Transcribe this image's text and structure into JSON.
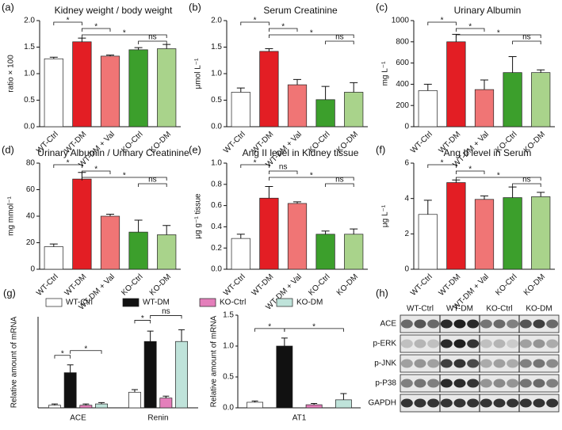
{
  "chart_data": [
    {
      "type": "bar",
      "panel_label": "(a)",
      "title": "Kidney weight / body weight",
      "ylabel": "ratio × 100",
      "categories": [
        "WT-Ctrl",
        "WT-DM",
        "WT-DM + Val",
        "KO-Ctrl",
        "KO-DM"
      ],
      "colors": [
        "#ffffff",
        "#e31e24",
        "#f07575",
        "#3c9f2c",
        "#a9d38b"
      ],
      "values": [
        1.28,
        1.6,
        1.33,
        1.45,
        1.47
      ],
      "errors": [
        0.03,
        0.07,
        0.02,
        0.04,
        0.08
      ],
      "ylim": [
        0,
        2
      ],
      "yticks": [
        {
          "value": 0,
          "label": "0.0"
        },
        0.5,
        {
          "value": 1,
          "label": "1.0"
        },
        1.5,
        {
          "value": 2,
          "label": "2.0"
        }
      ],
      "annotations": [
        {
          "label": "*",
          "between": [
            0,
            1
          ]
        },
        {
          "label": "*",
          "between": [
            1,
            2
          ]
        },
        {
          "label": "*",
          "between": [
            1,
            4
          ]
        },
        {
          "label": "ns",
          "between": [
            3,
            4
          ]
        }
      ]
    },
    {
      "type": "bar",
      "panel_label": "(b)",
      "title": "Serum Creatinine",
      "ylabel": "μmol L⁻¹",
      "categories": [
        "WT-Ctrl",
        "WT-DM",
        "WT-DM + Val",
        "KO-Ctrl",
        "KO-DM"
      ],
      "colors": [
        "#ffffff",
        "#e31e24",
        "#f07575",
        "#3c9f2c",
        "#a9d38b"
      ],
      "values": [
        0.65,
        1.42,
        0.79,
        0.51,
        0.65
      ],
      "errors": [
        0.08,
        0.05,
        0.1,
        0.25,
        0.18
      ],
      "ylim": [
        0,
        2
      ],
      "yticks": [
        {
          "value": 0,
          "label": "0.0"
        },
        0.5,
        {
          "value": 1,
          "label": "1.0"
        },
        1.5,
        {
          "value": 2,
          "label": "2.0"
        }
      ],
      "annotations": [
        {
          "label": "*",
          "between": [
            0,
            1
          ]
        },
        {
          "label": "*",
          "between": [
            1,
            2
          ]
        },
        {
          "label": "*",
          "between": [
            1,
            4
          ]
        },
        {
          "label": "ns",
          "between": [
            3,
            4
          ]
        }
      ]
    },
    {
      "type": "bar",
      "panel_label": "(c)",
      "title": "Urinary Albumin",
      "ylabel": "mg L⁻¹",
      "categories": [
        "WT-Ctrl",
        "WT-DM",
        "WT-DM + Val",
        "KO-Ctrl",
        "KO-DM"
      ],
      "colors": [
        "#ffffff",
        "#e31e24",
        "#f07575",
        "#3c9f2c",
        "#a9d38b"
      ],
      "values": [
        340,
        800,
        350,
        510,
        510
      ],
      "errors": [
        60,
        70,
        90,
        150,
        25
      ],
      "ylim": [
        0,
        1000
      ],
      "yticks": [
        0,
        200,
        400,
        600,
        800,
        1000
      ],
      "annotations": [
        {
          "label": "*",
          "between": [
            0,
            1
          ]
        },
        {
          "label": "*",
          "between": [
            1,
            2
          ]
        },
        {
          "label": "*",
          "between": [
            1,
            4
          ]
        },
        {
          "label": "ns",
          "between": [
            3,
            4
          ]
        }
      ]
    },
    {
      "type": "bar",
      "panel_label": "(d)",
      "title": "Urinary Albumin / Urinary Creatinine",
      "ylabel": "mg mmol⁻¹",
      "categories": [
        "WT-Ctrl",
        "WT-DM",
        "WT-DM + Val",
        "KO-Ctrl",
        "KO-DM"
      ],
      "colors": [
        "#ffffff",
        "#e31e24",
        "#f07575",
        "#3c9f2c",
        "#a9d38b"
      ],
      "values": [
        17,
        68,
        40,
        28,
        26
      ],
      "errors": [
        2,
        5,
        1.5,
        9,
        7
      ],
      "ylim": [
        0,
        80
      ],
      "yticks": [
        0,
        20,
        40,
        60,
        80
      ],
      "annotations": [
        {
          "label": "*",
          "between": [
            0,
            1
          ]
        },
        {
          "label": "*",
          "between": [
            1,
            2
          ]
        },
        {
          "label": "*",
          "between": [
            1,
            4
          ]
        },
        {
          "label": "ns",
          "between": [
            3,
            4
          ]
        }
      ]
    },
    {
      "type": "bar",
      "panel_label": "(e)",
      "title": "Ang II level in Kidney tissue",
      "ylabel": "μg g⁻¹ tissue",
      "categories": [
        "WT-Ctrl",
        "WT-DM",
        "WT-DM + Val",
        "KO-Ctrl",
        "KO-DM"
      ],
      "colors": [
        "#ffffff",
        "#e31e24",
        "#f07575",
        "#3c9f2c",
        "#a9d38b"
      ],
      "values": [
        0.29,
        0.67,
        0.62,
        0.33,
        0.33
      ],
      "errors": [
        0.04,
        0.11,
        0.015,
        0.03,
        0.05
      ],
      "ylim": [
        0,
        1
      ],
      "yticks": [
        {
          "value": 0,
          "label": "0.0"
        },
        0.2,
        0.4,
        0.6,
        0.8,
        {
          "value": 1,
          "label": "1.0"
        }
      ],
      "annotations": [
        {
          "label": "*",
          "between": [
            0,
            1
          ]
        },
        {
          "label": "ns",
          "between": [
            1,
            2
          ]
        },
        {
          "label": "*",
          "between": [
            1,
            4
          ]
        },
        {
          "label": "ns",
          "between": [
            3,
            4
          ]
        }
      ]
    },
    {
      "type": "bar",
      "panel_label": "(f)",
      "title": "Ang II level in Serum",
      "ylabel": "μg L⁻¹",
      "categories": [
        "WT-Ctrl",
        "WT-DM",
        "WT-DM + Val",
        "KO-Ctrl",
        "KO-DM"
      ],
      "colors": [
        "#ffffff",
        "#e31e24",
        "#f07575",
        "#3c9f2c",
        "#a9d38b"
      ],
      "values": [
        3.1,
        4.9,
        3.95,
        4.05,
        4.1
      ],
      "errors": [
        0.8,
        0.15,
        0.2,
        0.6,
        0.25
      ],
      "ylim": [
        0,
        6
      ],
      "yticks": [
        0,
        2,
        4,
        6
      ],
      "annotations": [
        {
          "label": "*",
          "between": [
            0,
            1
          ]
        },
        {
          "label": "*",
          "between": [
            1,
            2
          ]
        },
        {
          "label": "*",
          "between": [
            1,
            4
          ]
        },
        {
          "label": "ns",
          "between": [
            3,
            4
          ]
        }
      ]
    },
    {
      "type": "grouped-bar",
      "panel_label": "(g)",
      "ylabel": "Relative amount of mRNA",
      "legend": "top",
      "categories": [
        "ACE",
        "Renin"
      ],
      "ylim": [
        0,
        7
      ],
      "series": [
        {
          "name": "WT-Ctrl",
          "color": "#ffffff",
          "values": [
            0.2,
            1.2
          ],
          "errors": [
            0.1,
            0.2
          ]
        },
        {
          "name": "WT-DM",
          "color": "#111111",
          "values": [
            2.7,
            5.1
          ],
          "errors": [
            0.6,
            0.8
          ]
        },
        {
          "name": "KO-Ctrl",
          "color": "#e47fbb",
          "values": [
            0.2,
            0.75
          ],
          "errors": [
            0.1,
            0.15
          ]
        },
        {
          "name": "KO-DM",
          "color": "#bfe3da",
          "values": [
            0.3,
            5.1
          ],
          "errors": [
            0.1,
            0.9
          ]
        }
      ],
      "annotations": [
        {
          "label": "*",
          "group": 0,
          "between": [
            0,
            1
          ]
        },
        {
          "label": "*",
          "group": 0,
          "between": [
            1,
            3
          ]
        },
        {
          "label": "*",
          "group": 1,
          "between": [
            0,
            1
          ]
        },
        {
          "label": "ns",
          "group": 1,
          "between": [
            1,
            3
          ]
        }
      ]
    },
    {
      "type": "grouped-bar",
      "ylabel": "Relative amount of mRNA",
      "categories": [
        "AT1"
      ],
      "ylim": [
        0,
        1.5
      ],
      "yticks": [
        {
          "value": 0,
          "label": "0.0"
        },
        0.5,
        {
          "value": 1,
          "label": "1.0"
        },
        1.5
      ],
      "series": [
        {
          "color": "#ffffff",
          "values": [
            0.09
          ],
          "errors": [
            0.02
          ]
        },
        {
          "color": "#111111",
          "values": [
            1.0
          ],
          "errors": [
            0.13
          ]
        },
        {
          "color": "#e47fbb",
          "values": [
            0.05
          ],
          "errors": [
            0.02
          ]
        },
        {
          "color": "#bfe3da",
          "values": [
            0.13
          ],
          "errors": [
            0.1
          ]
        }
      ],
      "annotations": [
        {
          "label": "*",
          "group": 0,
          "between": [
            0,
            1
          ]
        },
        {
          "label": "*",
          "group": 0,
          "between": [
            1,
            3
          ]
        }
      ]
    },
    {
      "type": "blot",
      "panel_label": "(h)",
      "columns": [
        "WT-Ctrl",
        "WT-DM",
        "KO-Ctrl",
        "KO-DM"
      ],
      "rows": [
        "ACE",
        "p-ERK",
        "p-JNK",
        "p-P38",
        "GAPDH"
      ]
    }
  ]
}
